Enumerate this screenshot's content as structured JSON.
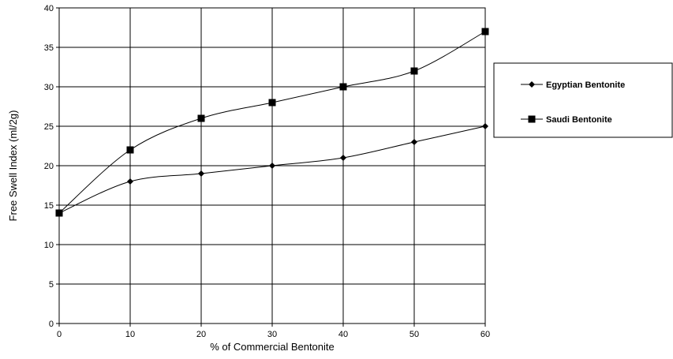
{
  "chart_data": {
    "type": "line",
    "title": "",
    "xlabel": "% of Commercial Bentonite",
    "ylabel": "Free Swell Index (ml/2g)",
    "xlim": [
      0,
      60
    ],
    "ylim": [
      0,
      40
    ],
    "xticks": [
      0,
      10,
      20,
      30,
      40,
      50,
      60
    ],
    "yticks": [
      0,
      5,
      10,
      15,
      20,
      25,
      30,
      35,
      40
    ],
    "grid": true,
    "smoothed": true,
    "legend_position": "right",
    "series": [
      {
        "name": "Egyptian Bentonite",
        "marker": "diamond",
        "color": "#000000",
        "x": [
          0,
          10,
          20,
          30,
          40,
          50,
          60
        ],
        "values": [
          14,
          18,
          19,
          20,
          21,
          23,
          25
        ]
      },
      {
        "name": "Saudi Bentonite",
        "marker": "square",
        "color": "#000000",
        "x": [
          0,
          10,
          20,
          30,
          40,
          50,
          60
        ],
        "values": [
          14,
          22,
          26,
          28,
          30,
          32,
          37
        ]
      }
    ]
  }
}
